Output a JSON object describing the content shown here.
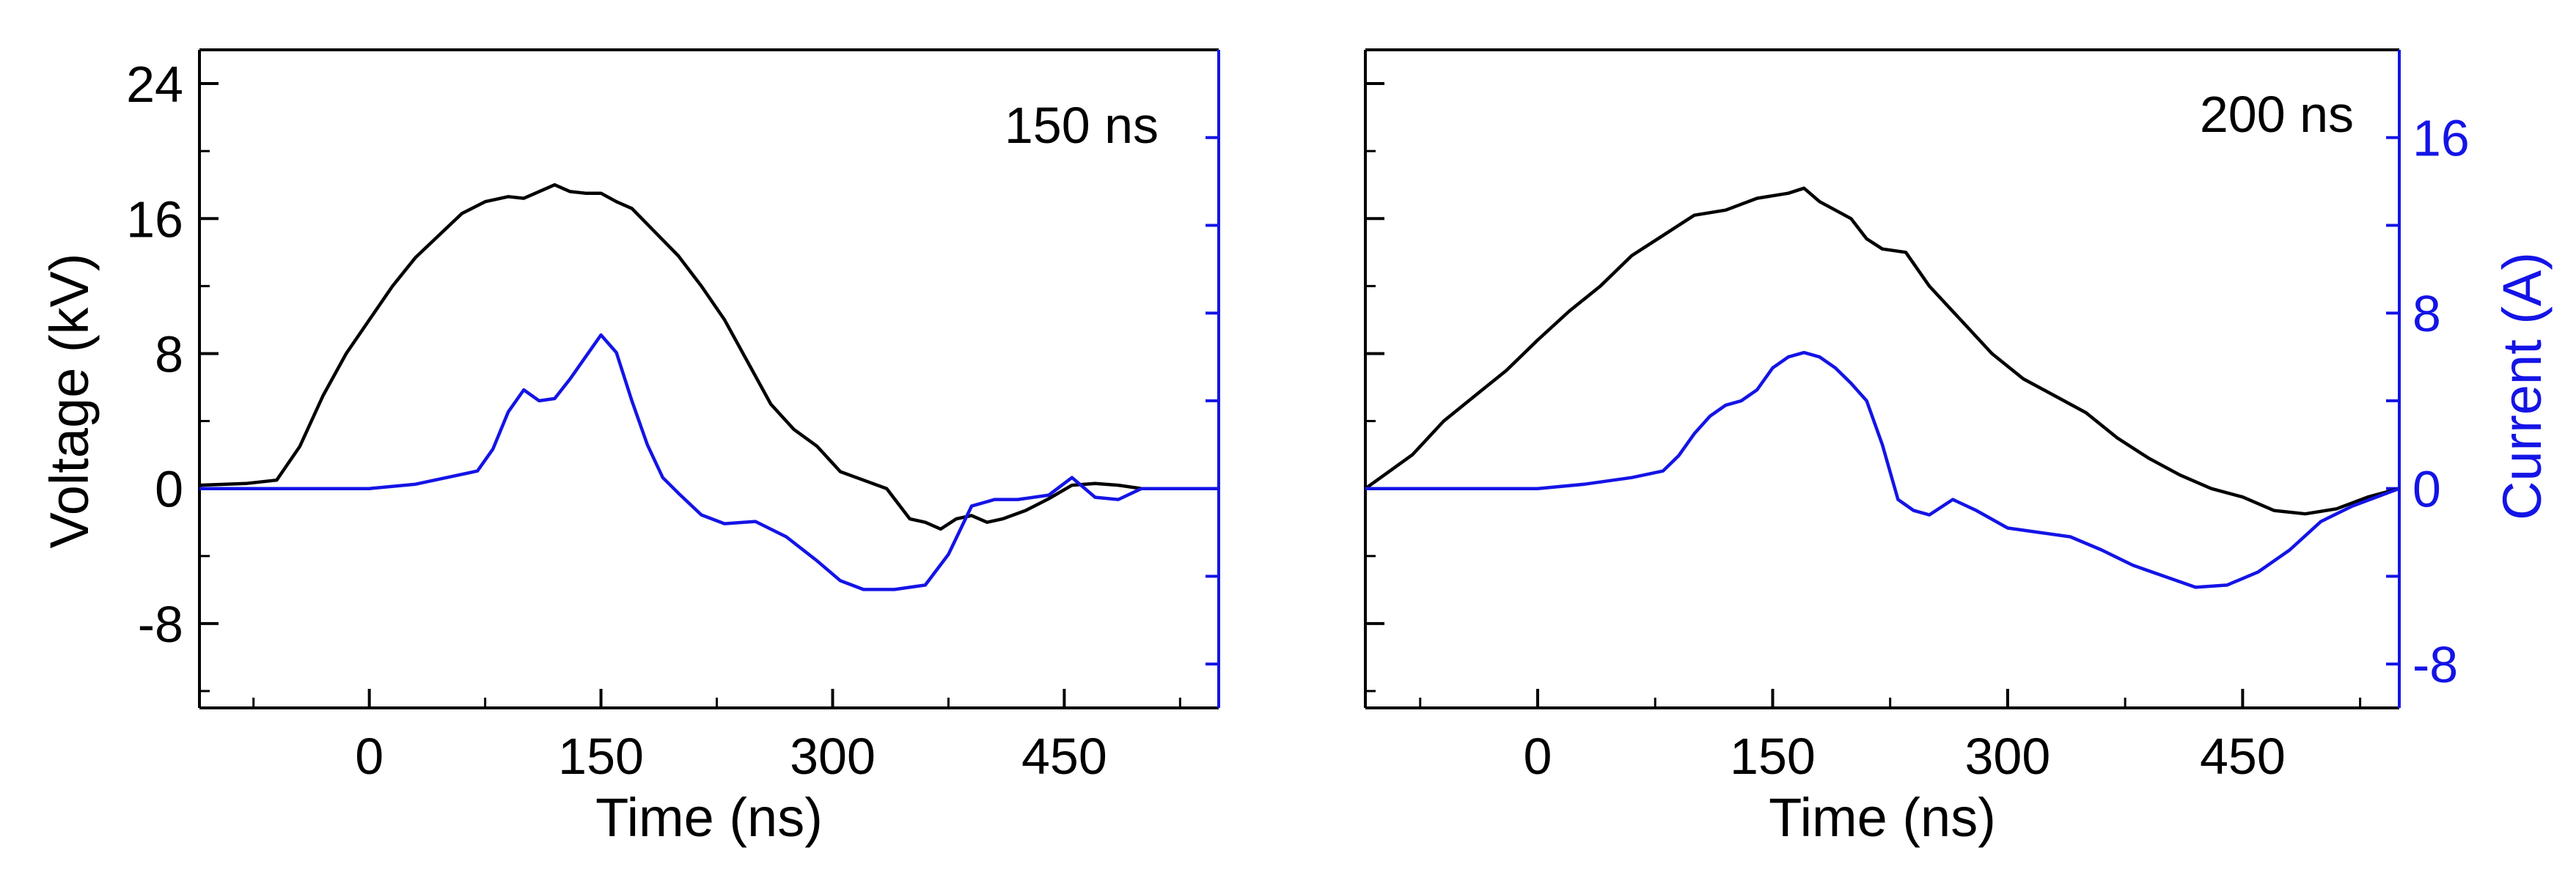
{
  "chart_data": [
    {
      "type": "line",
      "panel_label": "150 ns",
      "xlabel": "Time (ns)",
      "ylabel_left": "Voltage (kV)",
      "ylabel_right": "",
      "xlim": [
        -110,
        550
      ],
      "ylim_left": [
        -13,
        26
      ],
      "ylim_right": [
        -10,
        20
      ],
      "xticks": [
        0,
        150,
        300,
        450
      ],
      "xtick_labels": [
        "0",
        "150",
        "300",
        "450"
      ],
      "yticks_left": [
        -8,
        0,
        8,
        16,
        24
      ],
      "ytick_labels_left": [
        "-8",
        "0",
        "8",
        "16",
        "24"
      ],
      "yticks_right": [
        -8,
        -4,
        0,
        4,
        8,
        12,
        16
      ],
      "ytick_labels_right": [],
      "grid": false,
      "colors": {
        "voltage": "#000000",
        "current": "#1414e6",
        "right_axis": "#1414e6"
      },
      "series": [
        {
          "axis": "left",
          "color": "#000000",
          "x": [
            -110,
            -80,
            -60,
            -45,
            -30,
            -15,
            0,
            15,
            30,
            45,
            60,
            75,
            90,
            100,
            110,
            120,
            130,
            140,
            150,
            160,
            170,
            185,
            200,
            215,
            230,
            245,
            260,
            275,
            290,
            305,
            320,
            335,
            350,
            360,
            370,
            380,
            390,
            400,
            410,
            425,
            440,
            455,
            470,
            485,
            500,
            520,
            550
          ],
          "y": [
            0.2,
            0.3,
            0.5,
            2.5,
            5.5,
            8.0,
            10.0,
            12.0,
            13.7,
            15.0,
            16.3,
            17.0,
            17.3,
            17.2,
            17.6,
            18.0,
            17.6,
            17.5,
            17.5,
            17.0,
            16.6,
            15.2,
            13.8,
            12.0,
            10.0,
            7.5,
            5.0,
            3.5,
            2.5,
            1.0,
            0.5,
            0.0,
            -1.8,
            -2.0,
            -2.4,
            -1.8,
            -1.6,
            -2.0,
            -1.8,
            -1.3,
            -0.6,
            0.2,
            0.3,
            0.2,
            0.0,
            0.0,
            0.0
          ]
        },
        {
          "axis": "right",
          "color": "#1414e6",
          "x": [
            -110,
            -60,
            -20,
            0,
            30,
            50,
            70,
            80,
            90,
            100,
            110,
            120,
            130,
            140,
            150,
            160,
            170,
            180,
            190,
            200,
            215,
            230,
            250,
            270,
            290,
            305,
            320,
            340,
            360,
            375,
            390,
            405,
            420,
            440,
            455,
            470,
            485,
            500,
            520,
            550
          ],
          "y": [
            0.0,
            0.0,
            0.0,
            0.0,
            0.2,
            0.5,
            0.8,
            1.8,
            3.5,
            4.5,
            4.0,
            4.1,
            5.0,
            6.0,
            7.0,
            6.2,
            4.0,
            2.0,
            0.5,
            -0.2,
            -1.2,
            -1.6,
            -1.5,
            -2.2,
            -3.3,
            -4.2,
            -4.6,
            -4.6,
            -4.4,
            -3.0,
            -0.8,
            -0.5,
            -0.5,
            -0.3,
            0.5,
            -0.4,
            -0.5,
            0.0,
            0.0,
            0.0
          ]
        }
      ]
    },
    {
      "type": "line",
      "panel_label": "200 ns",
      "xlabel": "Time (ns)",
      "ylabel_left": "",
      "ylabel_right": "Current (A)",
      "xlim": [
        -110,
        550
      ],
      "ylim_left": [
        -13,
        26
      ],
      "ylim_right": [
        -10,
        20
      ],
      "xticks": [
        0,
        150,
        300,
        450
      ],
      "xtick_labels": [
        "0",
        "150",
        "300",
        "450"
      ],
      "yticks_left": [
        -8,
        0,
        8,
        16,
        24
      ],
      "ytick_labels_left": [],
      "yticks_right": [
        -8,
        -4,
        0,
        4,
        8,
        12,
        16
      ],
      "ytick_labels_right": [
        "-8",
        "0",
        "8",
        "16"
      ],
      "grid": false,
      "colors": {
        "voltage": "#000000",
        "current": "#1414e6",
        "right_axis": "#1414e6"
      },
      "series": [
        {
          "axis": "left",
          "color": "#000000",
          "x": [
            -110,
            -80,
            -60,
            -40,
            -20,
            0,
            20,
            40,
            60,
            80,
            100,
            120,
            140,
            160,
            170,
            180,
            190,
            200,
            210,
            220,
            235,
            250,
            270,
            290,
            310,
            330,
            350,
            370,
            390,
            410,
            430,
            450,
            470,
            490,
            510,
            530,
            550
          ],
          "y": [
            0.0,
            2.0,
            4.0,
            5.5,
            7.0,
            8.8,
            10.5,
            12.0,
            13.8,
            15.0,
            16.2,
            16.5,
            17.2,
            17.5,
            17.8,
            17.0,
            16.5,
            16.0,
            14.8,
            14.2,
            14.0,
            12.0,
            10.0,
            8.0,
            6.5,
            5.5,
            4.5,
            3.0,
            1.8,
            0.8,
            0.0,
            -0.5,
            -1.3,
            -1.5,
            -1.2,
            -0.5,
            0.0
          ]
        },
        {
          "axis": "right",
          "color": "#1414e6",
          "x": [
            -110,
            -60,
            -20,
            0,
            30,
            60,
            80,
            90,
            100,
            110,
            120,
            130,
            140,
            150,
            160,
            170,
            180,
            190,
            200,
            210,
            220,
            230,
            240,
            250,
            265,
            280,
            300,
            320,
            340,
            360,
            380,
            400,
            420,
            440,
            460,
            480,
            500,
            520,
            550
          ],
          "y": [
            0.0,
            0.0,
            0.0,
            0.0,
            0.2,
            0.5,
            0.8,
            1.5,
            2.5,
            3.3,
            3.8,
            4.0,
            4.5,
            5.5,
            6.0,
            6.2,
            6.0,
            5.5,
            4.8,
            4.0,
            2.0,
            -0.5,
            -1.0,
            -1.2,
            -0.5,
            -1.0,
            -1.8,
            -2.0,
            -2.2,
            -2.8,
            -3.5,
            -4.0,
            -4.5,
            -4.4,
            -3.8,
            -2.8,
            -1.5,
            -0.8,
            0.0
          ]
        }
      ]
    }
  ]
}
